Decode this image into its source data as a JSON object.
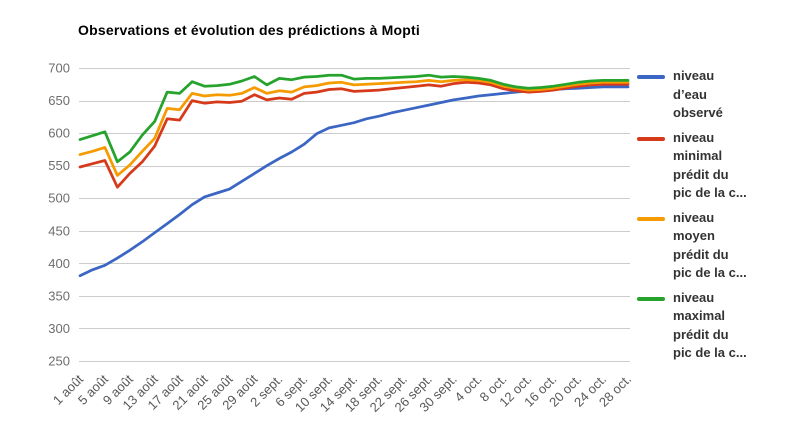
{
  "title": "Observations et évolution des prédictions à Mopti",
  "colors": {
    "background": "#ffffff",
    "grid": "#cccccc",
    "y_axis_text": "#6e6e6e",
    "x_axis_text": "#585858",
    "legend_text": "#333333",
    "title_text": "#000000"
  },
  "chart_data": {
    "type": "line",
    "title": "Observations et évolution des prédictions à Mopti",
    "grid": true,
    "legend_position": "right",
    "ylim": [
      250,
      700
    ],
    "y_ticks": [
      250,
      300,
      350,
      400,
      450,
      500,
      550,
      600,
      650,
      700
    ],
    "x_tick_labels": [
      "1 août",
      "5 août",
      "9 août",
      "13 août",
      "17 août",
      "21 août",
      "25 août",
      "29 août",
      "2 sept.",
      "6 sept.",
      "10 sept.",
      "14 sept.",
      "18 sept.",
      "22 sept.",
      "26 sept.",
      "30 sept.",
      "4 oct.",
      "8 oct.",
      "12 oct.",
      "16 oct.",
      "20 oct.",
      "24 oct.",
      "28 oct."
    ],
    "days_per_tick": 4,
    "point_step_days": 2,
    "x_total_days": 88,
    "series": [
      {
        "id": "observe",
        "name": "niveau d’eau observé",
        "color": "#3B66C4",
        "values": [
          381,
          390,
          397,
          408,
          420,
          433,
          447,
          461,
          475,
          490,
          502,
          508,
          514,
          526,
          538,
          550,
          561,
          571,
          583,
          599,
          608,
          612,
          616,
          622,
          626,
          631,
          635,
          639,
          643,
          647,
          651,
          654,
          657,
          659,
          661,
          663,
          665,
          666,
          667,
          668,
          669,
          670,
          671,
          671,
          671
        ]
      },
      {
        "id": "minimal",
        "name": "niveau minimal prédit du pic de la c...",
        "color": "#D63A1A",
        "values": [
          548,
          553,
          558,
          517,
          538,
          556,
          580,
          622,
          620,
          650,
          646,
          648,
          647,
          649,
          659,
          651,
          654,
          652,
          661,
          663,
          667,
          668,
          664,
          665,
          666,
          668,
          670,
          672,
          674,
          672,
          676,
          678,
          677,
          674,
          668,
          665,
          663,
          664,
          666,
          669,
          672,
          674,
          675,
          675,
          675
        ]
      },
      {
        "id": "moyen",
        "name": "niveau moyen prédit du pic de la c...",
        "color": "#F59B00",
        "values": [
          567,
          572,
          578,
          535,
          551,
          572,
          592,
          638,
          636,
          661,
          657,
          659,
          658,
          661,
          670,
          661,
          665,
          663,
          671,
          673,
          677,
          678,
          674,
          675,
          676,
          677,
          678,
          679,
          681,
          679,
          681,
          682,
          681,
          678,
          672,
          669,
          666,
          667,
          669,
          672,
          675,
          677,
          678,
          678,
          678
        ]
      },
      {
        "id": "maximal",
        "name": "niveau maximal prédit du pic de la c...",
        "color": "#26A32C",
        "values": [
          590,
          596,
          602,
          556,
          571,
          597,
          618,
          663,
          661,
          679,
          672,
          673,
          675,
          680,
          687,
          674,
          684,
          682,
          686,
          687,
          689,
          689,
          683,
          684,
          684,
          685,
          686,
          687,
          689,
          686,
          687,
          686,
          684,
          681,
          675,
          671,
          669,
          670,
          672,
          675,
          678,
          680,
          681,
          681,
          681
        ]
      }
    ]
  },
  "legend": {
    "items": [
      {
        "id": "observe",
        "color": "#3B66C4",
        "lines": [
          "niveau",
          "d’eau",
          "observé"
        ]
      },
      {
        "id": "minimal",
        "color": "#D63A1A",
        "lines": [
          "niveau",
          "minimal",
          "prédit du",
          "pic de la c..."
        ]
      },
      {
        "id": "moyen",
        "color": "#F59B00",
        "lines": [
          "niveau",
          "moyen",
          "prédit du",
          "pic de la c..."
        ]
      },
      {
        "id": "maximal",
        "color": "#26A32C",
        "lines": [
          "niveau",
          "maximal",
          "prédit du",
          "pic de la c..."
        ]
      }
    ]
  }
}
